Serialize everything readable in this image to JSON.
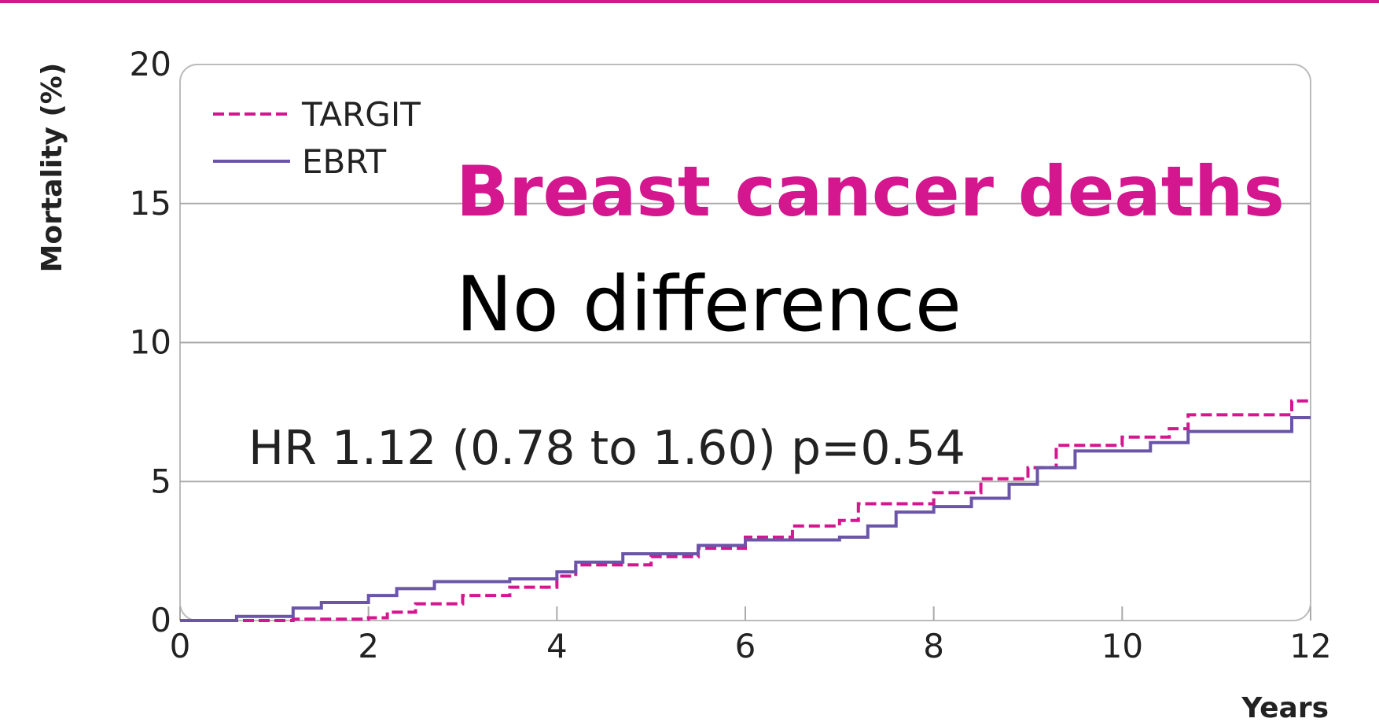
{
  "chart_data": {
    "type": "line",
    "title": "Breast cancer deaths",
    "subtitle": "No difference",
    "annotation": "HR 1.12 (0.78 to 1.60) p=0.54",
    "xlabel": "Years",
    "ylabel": "Mortality (%)",
    "xlim": [
      0,
      12
    ],
    "ylim": [
      0,
      20
    ],
    "xticks": [
      0,
      2,
      4,
      6,
      8,
      10,
      12
    ],
    "yticks": [
      0,
      5,
      10,
      15,
      20
    ],
    "grid": true,
    "legend": "upper left",
    "step": true,
    "series": [
      {
        "name": "TARGIT",
        "color": "#d4168f",
        "dash": true,
        "x": [
          0,
          1,
          1.2,
          2,
          2.2,
          2.5,
          3,
          3.5,
          4,
          4.2,
          5,
          5.5,
          6,
          6.5,
          7,
          7.2,
          8,
          8.5,
          9,
          9.3,
          10,
          10.5,
          10.7,
          11.8,
          12
        ],
        "values": [
          0,
          0,
          0.05,
          0.1,
          0.3,
          0.6,
          0.9,
          1.2,
          1.6,
          2.0,
          2.3,
          2.6,
          3.0,
          3.4,
          3.6,
          4.2,
          4.6,
          5.1,
          5.5,
          6.3,
          6.6,
          6.9,
          7.4,
          7.9,
          7.9
        ]
      },
      {
        "name": "EBRT",
        "color": "#6a55a8",
        "dash": false,
        "x": [
          0,
          0.6,
          1.2,
          1.5,
          2,
          2.3,
          2.7,
          3.5,
          4,
          4.2,
          4.7,
          5.5,
          6,
          7,
          7.3,
          7.6,
          8,
          8.4,
          8.8,
          9.1,
          9.5,
          10.3,
          10.7,
          11.8,
          12
        ],
        "values": [
          0,
          0.15,
          0.45,
          0.65,
          0.9,
          1.15,
          1.4,
          1.5,
          1.75,
          2.1,
          2.4,
          2.7,
          2.9,
          3.0,
          3.4,
          3.9,
          4.1,
          4.4,
          4.9,
          5.5,
          6.1,
          6.4,
          6.8,
          7.3,
          7.3
        ]
      }
    ]
  }
}
